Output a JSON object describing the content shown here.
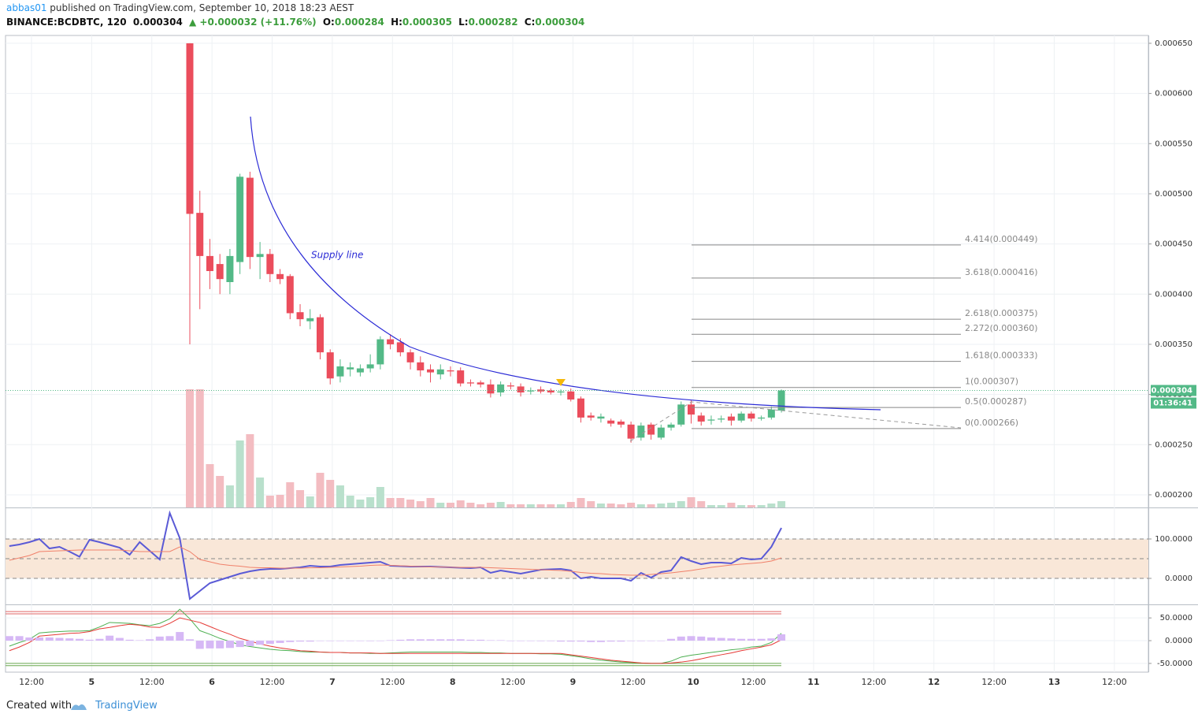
{
  "header": {
    "author": "abbas01",
    "published": "published on TradingView.com, September 10, 2018 18:23 AEST",
    "symbol": "BINANCE:BCDBTC, 120",
    "last": "0.000304",
    "change": "▲ +0.000032 (+11.76%)",
    "ohlc": [
      {
        "label": "O:",
        "value": "0.000284"
      },
      {
        "label": "H:",
        "value": "0.000305"
      },
      {
        "label": "L:",
        "value": "0.000282"
      },
      {
        "label": "C:",
        "value": "0.000304"
      }
    ]
  },
  "footer": {
    "text": "Created with",
    "brand": "TradingView"
  },
  "chart_data": [
    {
      "type": "candlestick",
      "open": [
        0.00065,
        0.000481,
        0.000438,
        0.00043,
        0.000412,
        0.000432,
        0.000516,
        0.000437,
        0.00044,
        0.00042,
        0.000418,
        0.000382,
        0.000373,
        0.000377,
        0.000342,
        0.000318,
        0.000325,
        0.000322,
        0.000326,
        0.00033,
        0.000355,
        0.000352,
        0.000342,
        0.000332,
        0.000325,
        0.00032,
        0.000324,
        0.000324,
        0.000312,
        0.000312,
        0.00031,
        0.000302,
        0.000309,
        0.000308,
        0.000303,
        0.000305,
        0.000304,
        0.000302,
        0.000303,
        0.000296,
        0.000279,
        0.000276,
        0.000274,
        0.000273,
        0.00027,
        0.000257,
        0.00027,
        0.000257,
        0.000267,
        0.00027,
        0.00029,
        0.000279,
        0.000274,
        0.000275,
        0.000278,
        0.000274,
        0.000281,
        0.000276,
        0.000277,
        0.000284
      ],
      "high": [
        0.00065,
        0.000503,
        0.000455,
        0.00044,
        0.000445,
        0.00052,
        0.000522,
        0.000452,
        0.000445,
        0.000425,
        0.00042,
        0.00039,
        0.000385,
        0.00038,
        0.000345,
        0.000335,
        0.000332,
        0.00033,
        0.00034,
        0.000358,
        0.00036,
        0.000356,
        0.000345,
        0.000338,
        0.00033,
        0.00033,
        0.000328,
        0.000327,
        0.000315,
        0.000314,
        0.000315,
        0.000313,
        0.000312,
        0.000311,
        0.000307,
        0.000308,
        0.000306,
        0.000305,
        0.000306,
        0.000298,
        0.000282,
        0.000281,
        0.000276,
        0.000275,
        0.000273,
        0.000272,
        0.000272,
        0.00027,
        0.000272,
        0.000293,
        0.000294,
        0.000282,
        0.000279,
        0.000279,
        0.000281,
        0.000283,
        0.000283,
        0.000279,
        0.000288,
        0.000305
      ],
      "low": [
        0.00035,
        0.000385,
        0.000405,
        0.0004,
        0.0004,
        0.00042,
        0.000425,
        0.000415,
        0.000412,
        0.00041,
        0.000375,
        0.000368,
        0.000365,
        0.000335,
        0.00031,
        0.000312,
        0.000318,
        0.000318,
        0.000322,
        0.000325,
        0.000345,
        0.000338,
        0.000325,
        0.000318,
        0.000312,
        0.000315,
        0.000318,
        0.000308,
        0.000308,
        0.000307,
        0.000297,
        0.000298,
        0.000305,
        0.000298,
        0.0003,
        0.000301,
        0.0003,
        0.000299,
        0.000293,
        0.000272,
        0.000274,
        0.000272,
        0.000268,
        0.000267,
        0.000252,
        0.000254,
        0.000255,
        0.000255,
        0.000264,
        0.000268,
        0.000271,
        0.000269,
        0.00027,
        0.000272,
        0.000269,
        0.000272,
        0.000273,
        0.000274,
        0.000275,
        0.000282
      ],
      "close": [
        0.00048,
        0.000438,
        0.000423,
        0.000415,
        0.000438,
        0.000517,
        0.000437,
        0.00044,
        0.00042,
        0.000415,
        0.000381,
        0.000375,
        0.000376,
        0.000342,
        0.000316,
        0.000328,
        0.000327,
        0.000326,
        0.00033,
        0.000355,
        0.00035,
        0.000342,
        0.000332,
        0.000324,
        0.000322,
        0.000325,
        0.000323,
        0.000311,
        0.000311,
        0.00031,
        0.000301,
        0.00031,
        0.000308,
        0.000302,
        0.000304,
        0.000303,
        0.000302,
        0.000303,
        0.000295,
        0.000277,
        0.000277,
        0.000278,
        0.000271,
        0.00027,
        0.000256,
        0.000269,
        0.00026,
        0.000267,
        0.00027,
        0.00029,
        0.00028,
        0.000273,
        0.000275,
        0.000276,
        0.000274,
        0.000281,
        0.000276,
        0.000277,
        0.000285,
        0.000304
      ],
      "volume": [
        150,
        150,
        55,
        40,
        28,
        85,
        93,
        38,
        15,
        16,
        32,
        22,
        14,
        44,
        35,
        28,
        15,
        10,
        13,
        26,
        12,
        12,
        10,
        8,
        12,
        6,
        6,
        9,
        6,
        4,
        6,
        7,
        4,
        4,
        4,
        4,
        4,
        4,
        7,
        12,
        8,
        5,
        5,
        4,
        6,
        4,
        4,
        5,
        6,
        8,
        13,
        8,
        3,
        3,
        6,
        3,
        3,
        3,
        5,
        8
      ],
      "up_color": "#53b987",
      "down_color": "#eb4d5c",
      "up_volume_color": "#b9e0cc",
      "down_volume_color": "#f3bcc1",
      "ylim": [
        0.0001874,
        0.0006578
      ],
      "yticks": [
        {
          "value": 0.0002,
          "label": "0.000200"
        },
        {
          "value": 0.00025,
          "label": "0.000250"
        },
        {
          "value": 0.0003,
          "label": "0.000300"
        },
        {
          "value": 0.00035,
          "label": "0.000350"
        },
        {
          "value": 0.0004,
          "label": "0.000400"
        },
        {
          "value": 0.00045,
          "label": "0.000450"
        },
        {
          "value": 0.0005,
          "label": "0.000500"
        },
        {
          "value": 0.00055,
          "label": "0.000550"
        },
        {
          "value": 0.0006,
          "label": "0.000600"
        },
        {
          "value": 0.00065,
          "label": "0.000650"
        }
      ],
      "xticks": [
        "12:00",
        "5",
        "12:00",
        "6",
        "12:00",
        "7",
        "12:00",
        "8",
        "12:00",
        "9",
        "12:00",
        "10",
        "12:00",
        "11",
        "12:00",
        "12",
        "12:00",
        "13",
        "12:00"
      ],
      "grid": true,
      "last_price": {
        "value": 0.000304,
        "label": "0.000304"
      },
      "countdown": "01:36:41",
      "fib_levels": [
        {
          "label": "4.414(0.000449)",
          "value": 0.000449
        },
        {
          "label": "3.618(0.000416)",
          "value": 0.000416
        },
        {
          "label": "2.618(0.000375)",
          "value": 0.000375
        },
        {
          "label": "2.272(0.000360)",
          "value": 0.00036
        },
        {
          "label": "1.618(0.000333)",
          "value": 0.000333
        },
        {
          "label": "1(0.000307)",
          "value": 0.000307
        },
        {
          "label": "0.5(0.000287)",
          "value": 0.000287
        },
        {
          "label": "0(0.000266)",
          "value": 0.000266
        }
      ],
      "annotation": "Supply line"
    },
    {
      "type": "line",
      "series": [
        {
          "color": "#5a5ad6",
          "values": [
            82,
            86,
            92,
            100,
            76,
            80,
            68,
            55,
            98,
            92,
            85,
            78,
            60,
            92,
            70,
            48,
            166,
            102,
            -52,
            -32,
            -12,
            -4,
            4,
            12,
            18,
            22,
            24,
            24,
            26,
            28,
            32,
            30,
            30,
            34,
            36,
            38,
            40,
            42,
            32,
            31,
            30,
            30,
            30,
            29,
            28,
            27,
            26,
            28,
            14,
            20,
            16,
            12,
            17,
            22,
            23,
            24,
            20,
            0,
            4,
            0,
            0,
            0,
            -6,
            14,
            2,
            16,
            20,
            54,
            44,
            36,
            40,
            40,
            38,
            52,
            48,
            50,
            80,
            128
          ]
        },
        {
          "color": "#f0806a",
          "values": [
            46,
            52,
            58,
            68,
            69,
            70,
            71,
            72,
            72,
            72,
            72,
            72,
            70,
            68,
            68,
            68,
            68,
            80,
            68,
            48,
            42,
            36,
            33,
            31,
            28,
            27,
            27,
            26,
            26,
            26,
            27,
            27,
            28,
            29,
            30,
            31,
            33,
            34,
            33,
            32,
            31,
            30,
            29,
            29,
            28,
            28,
            28,
            28,
            27,
            26,
            25,
            24,
            23,
            22,
            21,
            20,
            18,
            15,
            13,
            12,
            10,
            9,
            8,
            8,
            10,
            12,
            14,
            17,
            20,
            24,
            28,
            31,
            34,
            36,
            38,
            40,
            44,
            52
          ]
        }
      ],
      "ylim": [
        -66,
        178
      ],
      "yticks": [
        {
          "value": 100,
          "label": "100.0000"
        },
        {
          "value": 0,
          "label": "0.0000"
        }
      ],
      "levels": [
        100,
        50,
        0
      ],
      "band_color": "#f9e7d8"
    },
    {
      "type": "macd",
      "series": [
        {
          "color": "#4caf50",
          "values": [
            -12,
            -4,
            3,
            17,
            19,
            20,
            21,
            21,
            22,
            30,
            40,
            39,
            38,
            35,
            33,
            38,
            48,
            69,
            48,
            22,
            14,
            5,
            -2,
            -9,
            -13,
            -16,
            -19,
            -21,
            -22,
            -24,
            -25,
            -25,
            -26,
            -26,
            -27,
            -27,
            -28,
            -28,
            -27,
            -26,
            -25,
            -25,
            -25,
            -25,
            -25,
            -25,
            -26,
            -26,
            -27,
            -27,
            -28,
            -28,
            -28,
            -29,
            -29,
            -30,
            -33,
            -36,
            -40,
            -43,
            -45,
            -47,
            -48,
            -49,
            -50,
            -50,
            -45,
            -36,
            -32,
            -29,
            -26,
            -23,
            -20,
            -18,
            -14,
            -12,
            -4,
            16
          ]
        },
        {
          "color": "#e53935",
          "values": [
            -22,
            -14,
            -4,
            10,
            12,
            14,
            16,
            17,
            20,
            26,
            29,
            33,
            36,
            34,
            30,
            29,
            38,
            50,
            45,
            40,
            31,
            22,
            14,
            5,
            -1,
            -7,
            -12,
            -16,
            -19,
            -22,
            -23,
            -25,
            -26,
            -26,
            -27,
            -27,
            -27,
            -28,
            -28,
            -28,
            -28,
            -28,
            -28,
            -28,
            -28,
            -28,
            -28,
            -28,
            -28,
            -28,
            -28,
            -28,
            -28,
            -28,
            -28,
            -28,
            -31,
            -34,
            -37,
            -40,
            -43,
            -45,
            -47,
            -49,
            -50,
            -50,
            -49,
            -47,
            -44,
            -40,
            -35,
            -31,
            -27,
            -22,
            -18,
            -14,
            -9,
            2
          ]
        },
        {
          "color": "#d6b8f5",
          "kind": "histogram",
          "values": [
            10,
            10,
            7,
            7,
            7,
            6,
            5,
            4,
            2,
            4,
            11,
            6,
            2,
            1,
            3,
            9,
            10,
            19,
            3,
            -18,
            -17,
            -17,
            -16,
            -14,
            -12,
            -9,
            -7,
            -5,
            -3,
            -2,
            -2,
            0,
            0,
            0,
            0,
            0,
            -1,
            0,
            1,
            2,
            3,
            3,
            3,
            3,
            3,
            3,
            2,
            2,
            1,
            1,
            0,
            0,
            0,
            -1,
            -1,
            -2,
            -2,
            -2,
            -3,
            -3,
            -2,
            -2,
            -1,
            -1,
            0,
            0,
            4,
            9,
            10,
            9,
            7,
            6,
            5,
            4,
            4,
            4,
            5,
            14
          ]
        }
      ],
      "ylim": [
        -64,
        78
      ],
      "yticks": [
        {
          "value": 50,
          "label": "50.0000"
        },
        {
          "value": 0,
          "label": "0.0000"
        },
        {
          "value": -50,
          "label": "-50.0000"
        }
      ],
      "levels": [
        {
          "value": 64,
          "color": "#e06666"
        },
        {
          "value": 59,
          "color": "#e06666"
        },
        {
          "value": -50,
          "color": "#6aa84f"
        },
        {
          "value": -55,
          "color": "#6aa84f"
        }
      ]
    }
  ]
}
